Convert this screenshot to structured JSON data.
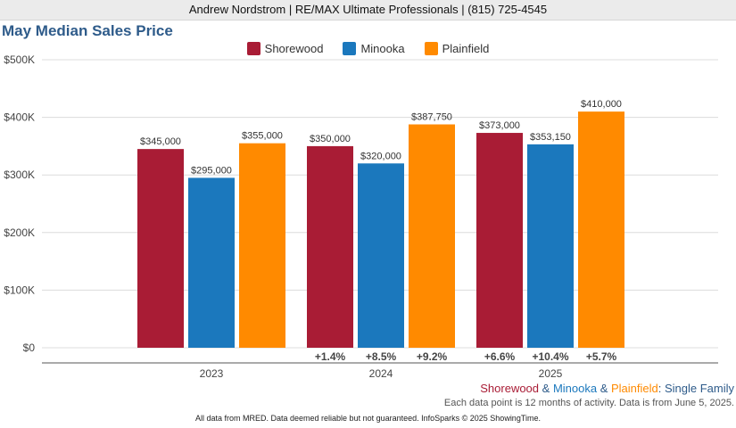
{
  "header": {
    "agent": "Andrew Nordstrom | RE/MAX Ultimate Professionals | (815) 725-4545"
  },
  "caption": {
    "area1": "Shorewood",
    "sep1": " & ",
    "area2": "Minooka",
    "sep2": " & ",
    "area3": "Plainfield",
    "suffix": ": Single Family",
    "note": "Each data point is 12 months of activity. Data is from June 5, 2025."
  },
  "footer": {
    "text": "All data from MRED. Data deemed reliable but not guaranteed. InfoSparks © 2025 ShowingTime."
  },
  "colors": {
    "shorewood": "#a91c35",
    "minooka": "#1b78bd",
    "plainfield": "#ff8a00",
    "title": "#2e5b8a"
  },
  "chart_data": {
    "type": "bar",
    "title": "May Median Sales Price",
    "categories": [
      "2023",
      "2024",
      "2025"
    ],
    "series": [
      {
        "name": "Shorewood",
        "values": [
          345000,
          350000,
          373000
        ],
        "labels": [
          "$345,000",
          "$350,000",
          "$373,000"
        ],
        "changes": [
          "",
          "+1.4%",
          "+6.6%"
        ]
      },
      {
        "name": "Minooka",
        "values": [
          295000,
          320000,
          353150
        ],
        "labels": [
          "$295,000",
          "$320,000",
          "$353,150"
        ],
        "changes": [
          "",
          "+8.5%",
          "+10.4%"
        ]
      },
      {
        "name": "Plainfield",
        "values": [
          355000,
          387750,
          410000
        ],
        "labels": [
          "$355,000",
          "$387,750",
          "$410,000"
        ],
        "changes": [
          "",
          "+9.2%",
          "+5.7%"
        ]
      }
    ],
    "ylim": [
      0,
      500000
    ],
    "yticks": [
      {
        "value": 0,
        "label": "$0"
      },
      {
        "value": 100000,
        "label": "$100K"
      },
      {
        "value": 200000,
        "label": "$200K"
      },
      {
        "value": 300000,
        "label": "$300K"
      },
      {
        "value": 400000,
        "label": "$400K"
      },
      {
        "value": 500000,
        "label": "$500K"
      }
    ],
    "grid": true,
    "legend": "top-center"
  }
}
